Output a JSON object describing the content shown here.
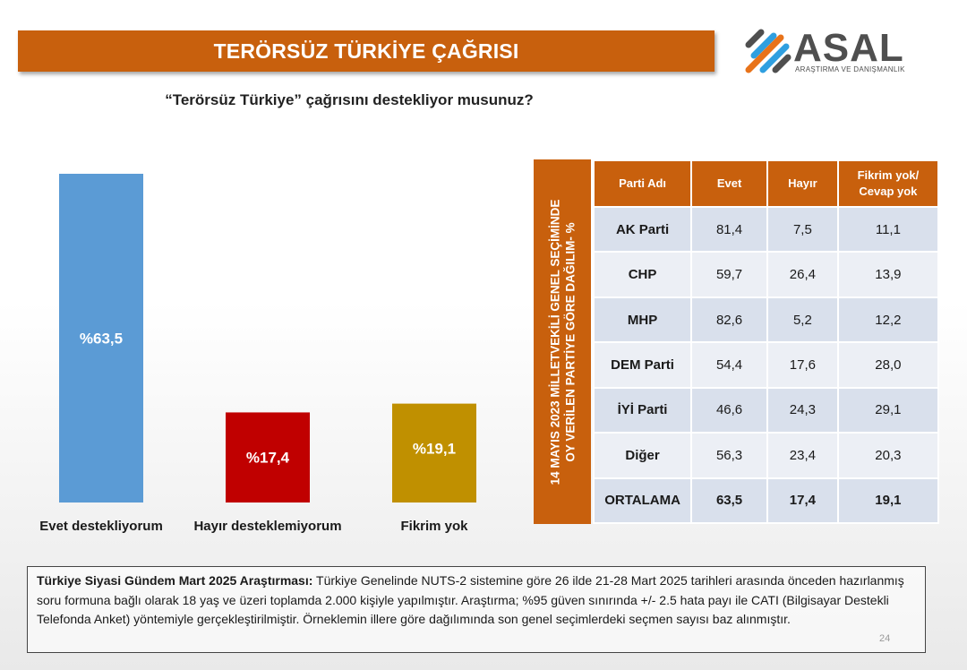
{
  "header": {
    "title": "TERÖRSÜZ TÜRKİYE ÇAĞRISI"
  },
  "logo": {
    "name": "ASAL",
    "subtitle": "ARAŞTIRMA VE DANIŞMANLIK",
    "colors": [
      "#2f9fe0",
      "#e8731a",
      "#4f4f4f"
    ]
  },
  "question": "“Terörsüz Türkiye” çağrısını destekliyor musunuz?",
  "chart_data": {
    "type": "bar",
    "title": "“Terörsüz Türkiye” çağrısını destekliyor musunuz?",
    "categories": [
      "Evet destekliyorum",
      "Hayır desteklemiyorum",
      "Fikrim yok"
    ],
    "values": [
      63.5,
      17.4,
      19.1
    ],
    "value_labels": [
      "%63,5",
      "%17,4",
      "%19,1"
    ],
    "colors": [
      "#5b9bd5",
      "#c00000",
      "#c09000"
    ],
    "ylim": [
      0,
      63.5
    ],
    "grid": false,
    "legend": "none"
  },
  "table": {
    "side_label_line1": "14 MAYIS 2023 MİLLETVEKİLİ GENEL SEÇİMİNDE",
    "side_label_line2": "OY VERİLEN PARTİYE GÖRE DAĞILIM- %",
    "headers": [
      "Parti Adı",
      "Evet",
      "Hayır",
      "Fikrim yok/\nCevap yok"
    ],
    "rows": [
      {
        "party": "AK Parti",
        "evet": "81,4",
        "hayir": "7,5",
        "fikrim": "11,1"
      },
      {
        "party": "CHP",
        "evet": "59,7",
        "hayir": "26,4",
        "fikrim": "13,9"
      },
      {
        "party": "MHP",
        "evet": "82,6",
        "hayir": "5,2",
        "fikrim": "12,2"
      },
      {
        "party": "DEM Parti",
        "evet": "54,4",
        "hayir": "17,6",
        "fikrim": "28,0"
      },
      {
        "party": "İYİ Parti",
        "evet": "46,6",
        "hayir": "24,3",
        "fikrim": "29,1"
      },
      {
        "party": "Diğer",
        "evet": "56,3",
        "hayir": "23,4",
        "fikrim": "20,3"
      },
      {
        "party": "ORTALAMA",
        "evet": "63,5",
        "hayir": "17,4",
        "fikrim": "19,1"
      }
    ]
  },
  "footnote": {
    "bold": "Türkiye Siyasi Gündem Mart 2025 Araştırması:",
    "text": " Türkiye Genelinde NUTS-2 sistemine göre 26 ilde 21-28 Mart 2025 tarihleri arasında önceden hazırlanmış soru formuna bağlı olarak 18 yaş ve üzeri toplamda 2.000 kişiyle yapılmıştır. Araştırma; %95 güven sınırında +/- 2.5 hata payı ile CATI (Bilgisayar Destekli Telefonda Anket) yöntemiyle gerçekleştirilmiştir. Örneklemin illere göre dağılımında son genel seçimlerdeki seçmen sayısı baz alınmıştır."
  },
  "page_number": "24"
}
